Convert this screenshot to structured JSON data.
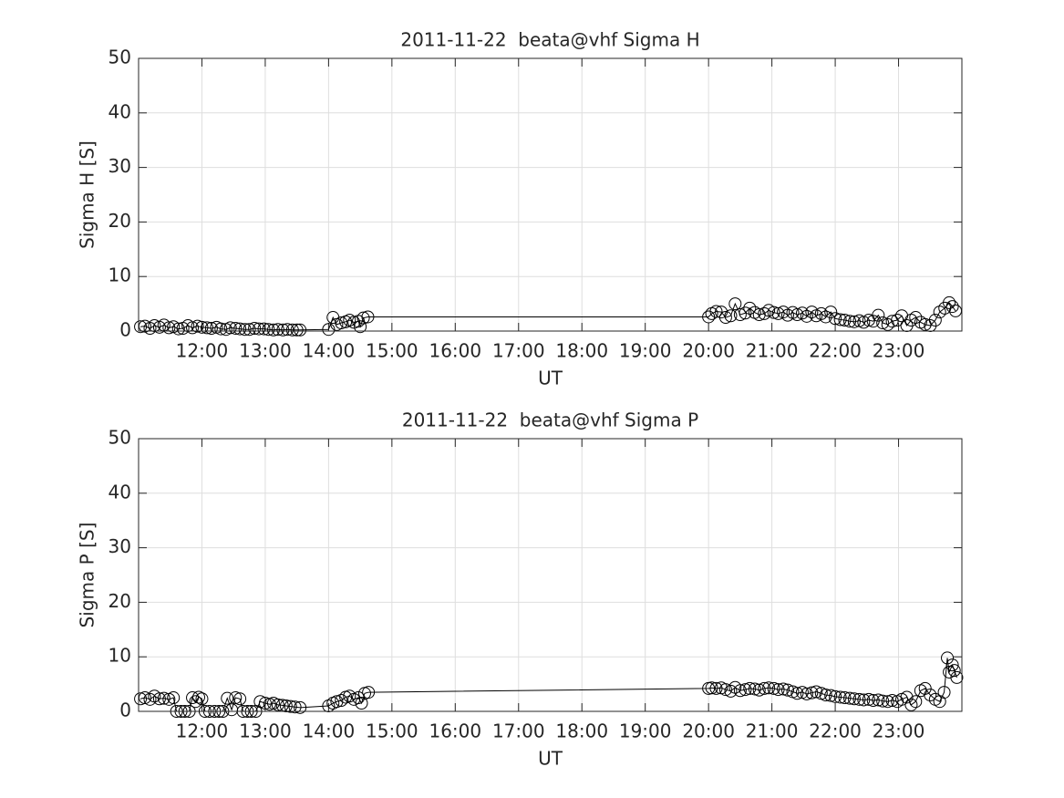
{
  "chart_data": [
    {
      "type": "line",
      "title": "2011-11-22  beata@vhf Sigma H",
      "xlabel": "UT",
      "ylabel": "Sigma H [S]",
      "marker": "circle",
      "grid": true,
      "xlim": [
        11,
        24
      ],
      "xticks": [
        {
          "value": 12,
          "label": "12:00"
        },
        {
          "value": 13,
          "label": "13:00"
        },
        {
          "value": 14,
          "label": "14:00"
        },
        {
          "value": 15,
          "label": "15:00"
        },
        {
          "value": 16,
          "label": "16:00"
        },
        {
          "value": 17,
          "label": "17:00"
        },
        {
          "value": 18,
          "label": "18:00"
        },
        {
          "value": 19,
          "label": "19:00"
        },
        {
          "value": 20,
          "label": "20:00"
        },
        {
          "value": 21,
          "label": "21:00"
        },
        {
          "value": 22,
          "label": "22:00"
        },
        {
          "value": 23,
          "label": "23:00"
        }
      ],
      "ylim": [
        0,
        50
      ],
      "yticks": [
        0,
        10,
        20,
        30,
        40,
        50
      ],
      "x": [
        11.03,
        11.1,
        11.18,
        11.25,
        11.33,
        11.4,
        11.48,
        11.55,
        11.63,
        11.7,
        11.78,
        11.85,
        11.93,
        12.0,
        12.08,
        12.15,
        12.23,
        12.3,
        12.38,
        12.45,
        12.53,
        12.6,
        12.68,
        12.75,
        12.83,
        12.9,
        12.98,
        13.05,
        13.13,
        13.2,
        13.28,
        13.35,
        13.43,
        13.5,
        13.55,
        14.0,
        14.07,
        14.13,
        14.2,
        14.27,
        14.33,
        14.4,
        14.47,
        14.5,
        14.55,
        14.62,
        20.0,
        20.05,
        20.12,
        20.2,
        20.27,
        20.35,
        20.42,
        20.5,
        20.58,
        20.65,
        20.73,
        20.8,
        20.88,
        20.95,
        21.03,
        21.1,
        21.18,
        21.25,
        21.33,
        21.4,
        21.48,
        21.55,
        21.63,
        21.7,
        21.78,
        21.85,
        21.93,
        22.0,
        22.08,
        22.15,
        22.23,
        22.3,
        22.38,
        22.45,
        22.53,
        22.6,
        22.68,
        22.75,
        22.83,
        22.9,
        22.98,
        23.05,
        23.13,
        23.2,
        23.27,
        23.35,
        23.42,
        23.5,
        23.58,
        23.65,
        23.73,
        23.8,
        23.85,
        23.9
      ],
      "series": [
        {
          "color": "#000000",
          "values": [
            0.8,
            0.9,
            0.5,
            1.0,
            0.7,
            1.1,
            0.6,
            0.8,
            0.4,
            0.5,
            1.0,
            0.6,
            0.9,
            0.7,
            0.6,
            0.5,
            0.7,
            0.4,
            0.3,
            0.6,
            0.5,
            0.4,
            0.3,
            0.3,
            0.5,
            0.4,
            0.4,
            0.3,
            0.2,
            0.3,
            0.2,
            0.3,
            0.2,
            0.2,
            0.2,
            0.3,
            2.5,
            1.2,
            1.5,
            1.7,
            2.0,
            1.6,
            1.8,
            0.8,
            2.4,
            2.6,
            2.6,
            3.2,
            3.6,
            3.5,
            2.5,
            2.8,
            5.0,
            3.0,
            3.3,
            4.2,
            3.4,
            3.0,
            3.2,
            3.8,
            3.4,
            3.2,
            3.5,
            2.9,
            3.4,
            3.0,
            3.3,
            2.7,
            3.5,
            2.8,
            3.2,
            2.6,
            3.5,
            2.3,
            2.1,
            2.0,
            1.8,
            1.7,
            1.9,
            1.6,
            2.0,
            1.8,
            2.9,
            1.5,
            1.2,
            1.8,
            2.0,
            2.8,
            1.0,
            2.0,
            2.5,
            1.6,
            1.2,
            1.0,
            2.0,
            3.5,
            4.2,
            5.2,
            4.5,
            3.7
          ]
        }
      ]
    },
    {
      "type": "line",
      "title": "2011-11-22  beata@vhf Sigma P",
      "xlabel": "UT",
      "ylabel": "Sigma P [S]",
      "marker": "circle",
      "grid": true,
      "xlim": [
        11,
        24
      ],
      "xticks": [
        {
          "value": 12,
          "label": "12:00"
        },
        {
          "value": 13,
          "label": "13:00"
        },
        {
          "value": 14,
          "label": "14:00"
        },
        {
          "value": 15,
          "label": "15:00"
        },
        {
          "value": 16,
          "label": "16:00"
        },
        {
          "value": 17,
          "label": "17:00"
        },
        {
          "value": 18,
          "label": "18:00"
        },
        {
          "value": 19,
          "label": "19:00"
        },
        {
          "value": 20,
          "label": "20:00"
        },
        {
          "value": 21,
          "label": "21:00"
        },
        {
          "value": 22,
          "label": "22:00"
        },
        {
          "value": 23,
          "label": "23:00"
        }
      ],
      "ylim": [
        0,
        50
      ],
      "yticks": [
        0,
        10,
        20,
        30,
        40,
        50
      ],
      "x": [
        11.03,
        11.1,
        11.18,
        11.25,
        11.33,
        11.4,
        11.48,
        11.55,
        11.6,
        11.67,
        11.73,
        11.8,
        11.85,
        11.9,
        11.95,
        12.0,
        12.05,
        12.12,
        12.2,
        12.27,
        12.33,
        12.4,
        12.47,
        12.53,
        12.6,
        12.65,
        12.72,
        12.78,
        12.85,
        12.92,
        13.0,
        13.07,
        13.13,
        13.2,
        13.27,
        13.33,
        13.4,
        13.47,
        13.55,
        14.0,
        14.07,
        14.13,
        14.2,
        14.27,
        14.33,
        14.4,
        14.47,
        14.52,
        14.57,
        14.63,
        20.0,
        20.05,
        20.12,
        20.2,
        20.27,
        20.35,
        20.42,
        20.5,
        20.58,
        20.65,
        20.73,
        20.8,
        20.88,
        20.95,
        21.03,
        21.1,
        21.18,
        21.25,
        21.33,
        21.4,
        21.48,
        21.55,
        21.63,
        21.7,
        21.78,
        21.85,
        21.93,
        22.0,
        22.08,
        22.15,
        22.23,
        22.3,
        22.38,
        22.45,
        22.53,
        22.6,
        22.68,
        22.75,
        22.83,
        22.9,
        22.98,
        23.05,
        23.13,
        23.2,
        23.27,
        23.35,
        23.42,
        23.5,
        23.58,
        23.65,
        23.72,
        23.77,
        23.8,
        23.85,
        23.88,
        23.92
      ],
      "series": [
        {
          "color": "#000000",
          "values": [
            2.3,
            2.5,
            2.2,
            2.8,
            2.3,
            2.4,
            2.2,
            2.5,
            0,
            0,
            0,
            0,
            2.5,
            1.8,
            2.6,
            2.3,
            0,
            0,
            0,
            0,
            0,
            2.4,
            0.3,
            2.5,
            2.3,
            0,
            0,
            0,
            0,
            1.8,
            1.5,
            1.3,
            1.5,
            1.2,
            1.1,
            1.0,
            0.9,
            0.8,
            0.7,
            1.0,
            1.5,
            1.8,
            2.0,
            2.6,
            2.8,
            2.2,
            2.5,
            1.5,
            3.3,
            3.5,
            4.2,
            4.3,
            4.2,
            4.3,
            4.0,
            3.7,
            4.4,
            3.8,
            4.0,
            4.2,
            4.1,
            3.9,
            4.2,
            4.3,
            4.2,
            4.0,
            4.1,
            3.9,
            3.6,
            3.3,
            3.5,
            3.2,
            3.4,
            3.6,
            3.3,
            3.0,
            2.9,
            2.7,
            2.6,
            2.5,
            2.4,
            2.3,
            2.2,
            2.1,
            2.2,
            2.0,
            2.1,
            1.9,
            1.8,
            2.0,
            1.8,
            2.2,
            2.6,
            1.2,
            1.8,
            3.8,
            4.2,
            3.0,
            2.2,
            1.8,
            3.5,
            9.8,
            7.2,
            8.5,
            7.5,
            6.2
          ]
        }
      ]
    }
  ]
}
